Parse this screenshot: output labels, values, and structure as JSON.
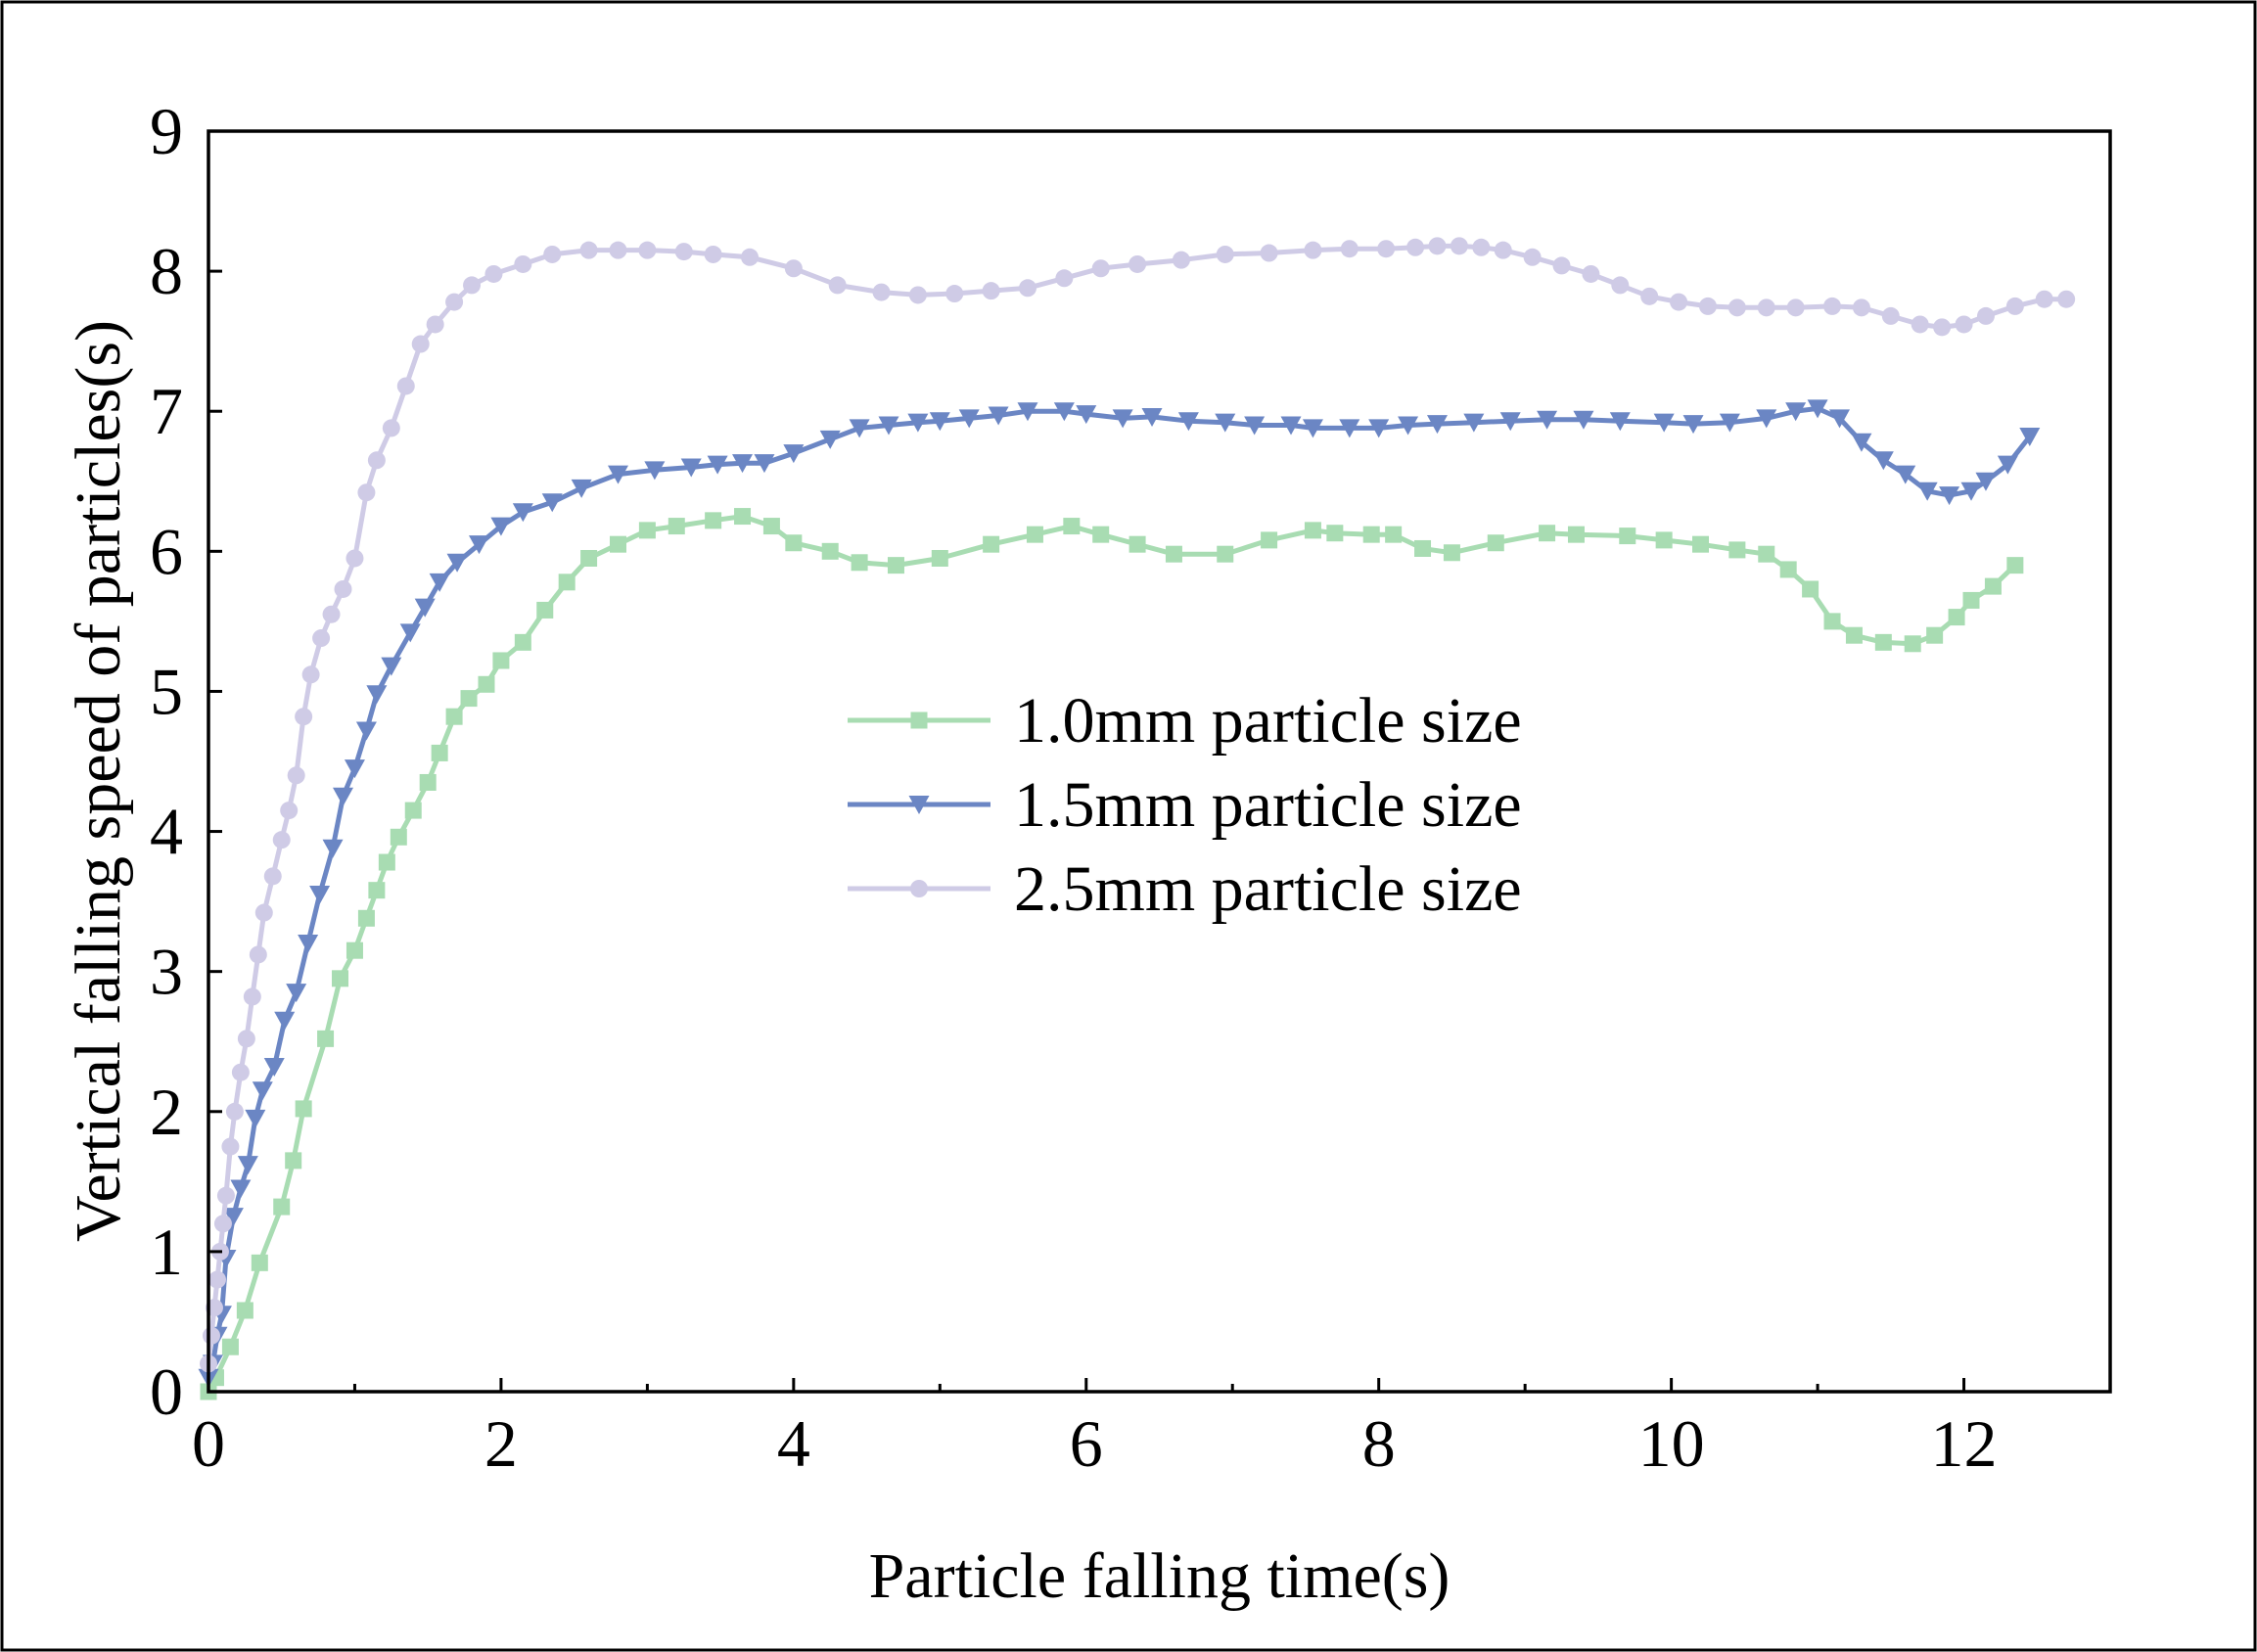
{
  "chart_data": {
    "type": "line",
    "title": "",
    "xlabel": "Particle falling time(s)",
    "ylabel": "Vertical falling speed of particles(s)",
    "xlim": [
      0,
      13
    ],
    "ylim": [
      0,
      9
    ],
    "xticks": [
      0,
      2,
      4,
      6,
      8,
      10,
      12
    ],
    "yticks": [
      0,
      1,
      2,
      3,
      4,
      5,
      6,
      7,
      8,
      9
    ],
    "xtick_labels": [
      "0",
      "2",
      "4",
      "6",
      "8",
      "10",
      "12"
    ],
    "ytick_labels": [
      "0",
      "1",
      "2",
      "3",
      "4",
      "5",
      "6",
      "7",
      "8",
      "9"
    ],
    "legend_position": "center",
    "series": [
      {
        "name": "1.0mm particle size",
        "color": "#a8dcb2",
        "marker": "square",
        "x": [
          0.0,
          0.05,
          0.15,
          0.25,
          0.35,
          0.5,
          0.58,
          0.65,
          0.8,
          0.9,
          1.0,
          1.08,
          1.15,
          1.22,
          1.3,
          1.4,
          1.5,
          1.58,
          1.68,
          1.78,
          1.9,
          2.0,
          2.15,
          2.3,
          2.45,
          2.6,
          2.8,
          3.0,
          3.2,
          3.45,
          3.65,
          3.85,
          4.0,
          4.25,
          4.45,
          4.7,
          5.0,
          5.35,
          5.65,
          5.9,
          6.1,
          6.35,
          6.6,
          6.95,
          7.25,
          7.55,
          7.7,
          7.95,
          8.1,
          8.3,
          8.5,
          8.8,
          9.15,
          9.35,
          9.7,
          9.95,
          10.2,
          10.45,
          10.65,
          10.8,
          10.95,
          11.1,
          11.25,
          11.45,
          11.65,
          11.8,
          11.95,
          12.05,
          12.2,
          12.35
        ],
        "values": [
          0.0,
          0.1,
          0.32,
          0.58,
          0.92,
          1.32,
          1.65,
          2.02,
          2.52,
          2.95,
          3.15,
          3.38,
          3.58,
          3.78,
          3.96,
          4.15,
          4.35,
          4.56,
          4.82,
          4.95,
          5.05,
          5.22,
          5.35,
          5.58,
          5.78,
          5.95,
          6.05,
          6.15,
          6.18,
          6.22,
          6.25,
          6.18,
          6.06,
          6.0,
          5.92,
          5.9,
          5.95,
          6.05,
          6.12,
          6.18,
          6.12,
          6.05,
          5.98,
          5.98,
          6.08,
          6.15,
          6.13,
          6.12,
          6.12,
          6.02,
          5.99,
          6.06,
          6.13,
          6.12,
          6.11,
          6.08,
          6.05,
          6.01,
          5.98,
          5.87,
          5.73,
          5.5,
          5.4,
          5.35,
          5.34,
          5.4,
          5.53,
          5.65,
          5.75,
          5.9
        ]
      },
      {
        "name": "1.5mm particle size",
        "color": "#6b86c4",
        "marker": "triangle-down",
        "x": [
          0.0,
          0.03,
          0.06,
          0.09,
          0.12,
          0.17,
          0.22,
          0.27,
          0.32,
          0.37,
          0.45,
          0.52,
          0.6,
          0.68,
          0.76,
          0.85,
          0.92,
          1.0,
          1.08,
          1.15,
          1.25,
          1.38,
          1.48,
          1.58,
          1.7,
          1.85,
          2.0,
          2.15,
          2.35,
          2.55,
          2.8,
          3.05,
          3.3,
          3.48,
          3.65,
          3.8,
          4.0,
          4.25,
          4.45,
          4.65,
          4.85,
          5.0,
          5.2,
          5.4,
          5.6,
          5.85,
          6.0,
          6.25,
          6.45,
          6.7,
          6.95,
          7.15,
          7.4,
          7.55,
          7.8,
          8.0,
          8.2,
          8.4,
          8.65,
          8.9,
          9.15,
          9.4,
          9.65,
          9.95,
          10.15,
          10.4,
          10.65,
          10.85,
          11.0,
          11.15,
          11.3,
          11.45,
          11.6,
          11.75,
          11.9,
          12.05,
          12.15,
          12.3,
          12.45
        ],
        "values": [
          0.1,
          0.2,
          0.4,
          0.55,
          0.95,
          1.25,
          1.45,
          1.62,
          1.95,
          2.15,
          2.32,
          2.65,
          2.85,
          3.2,
          3.55,
          3.88,
          4.25,
          4.45,
          4.72,
          4.98,
          5.18,
          5.42,
          5.6,
          5.78,
          5.92,
          6.05,
          6.18,
          6.28,
          6.35,
          6.45,
          6.55,
          6.58,
          6.6,
          6.62,
          6.63,
          6.63,
          6.7,
          6.8,
          6.88,
          6.9,
          6.92,
          6.93,
          6.95,
          6.97,
          7.0,
          7.0,
          6.98,
          6.95,
          6.96,
          6.93,
          6.92,
          6.9,
          6.9,
          6.88,
          6.88,
          6.88,
          6.9,
          6.91,
          6.92,
          6.93,
          6.94,
          6.94,
          6.93,
          6.92,
          6.91,
          6.92,
          6.95,
          7.0,
          7.02,
          6.95,
          6.78,
          6.65,
          6.55,
          6.43,
          6.4,
          6.43,
          6.5,
          6.62,
          6.82
        ]
      },
      {
        "name": "2.5mm particle size",
        "color": "#cfcbe6",
        "marker": "circle",
        "x": [
          0.0,
          0.02,
          0.04,
          0.06,
          0.08,
          0.1,
          0.12,
          0.15,
          0.18,
          0.22,
          0.26,
          0.3,
          0.34,
          0.38,
          0.44,
          0.5,
          0.55,
          0.6,
          0.65,
          0.7,
          0.77,
          0.84,
          0.92,
          1.0,
          1.08,
          1.15,
          1.25,
          1.35,
          1.45,
          1.55,
          1.68,
          1.8,
          1.95,
          2.15,
          2.35,
          2.6,
          2.8,
          3.0,
          3.25,
          3.45,
          3.7,
          4.0,
          4.3,
          4.6,
          4.85,
          5.1,
          5.35,
          5.6,
          5.85,
          6.1,
          6.35,
          6.65,
          6.95,
          7.25,
          7.55,
          7.8,
          8.05,
          8.25,
          8.4,
          8.55,
          8.7,
          8.85,
          9.05,
          9.25,
          9.45,
          9.65,
          9.85,
          10.05,
          10.25,
          10.45,
          10.65,
          10.85,
          11.1,
          11.3,
          11.5,
          11.7,
          11.85,
          12.0,
          12.15,
          12.35,
          12.55,
          12.7
        ],
        "values": [
          0.2,
          0.4,
          0.6,
          0.8,
          1.0,
          1.2,
          1.4,
          1.75,
          2.0,
          2.28,
          2.52,
          2.82,
          3.12,
          3.42,
          3.68,
          3.94,
          4.15,
          4.4,
          4.82,
          5.12,
          5.38,
          5.55,
          5.73,
          5.95,
          6.42,
          6.65,
          6.88,
          7.18,
          7.48,
          7.62,
          7.78,
          7.9,
          7.98,
          8.05,
          8.12,
          8.15,
          8.15,
          8.15,
          8.14,
          8.12,
          8.1,
          8.02,
          7.9,
          7.85,
          7.83,
          7.84,
          7.86,
          7.88,
          7.95,
          8.02,
          8.05,
          8.08,
          8.12,
          8.13,
          8.15,
          8.16,
          8.16,
          8.17,
          8.18,
          8.18,
          8.17,
          8.15,
          8.1,
          8.04,
          7.98,
          7.9,
          7.82,
          7.78,
          7.75,
          7.74,
          7.74,
          7.74,
          7.75,
          7.74,
          7.68,
          7.62,
          7.6,
          7.62,
          7.68,
          7.75,
          7.8,
          7.8
        ]
      }
    ]
  }
}
